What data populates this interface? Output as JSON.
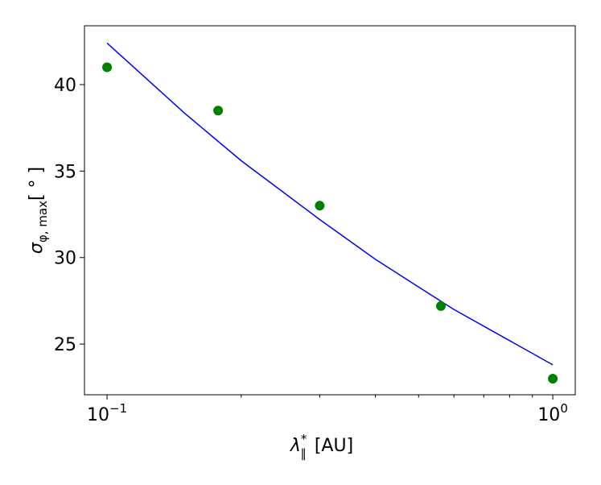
{
  "chart_data": {
    "type": "scatter-line",
    "xlog": true,
    "xlabel": {
      "symbol": "λ",
      "sup": "*",
      "sub": "∥",
      "unit": "[AU]"
    },
    "ylabel": {
      "symbol": "σ",
      "sub": "φ, max",
      "unit": "[ ° ]"
    },
    "xlim": [
      0.089,
      1.123
    ],
    "ylim": [
      22.07,
      43.4
    ],
    "xticks": [
      {
        "value": 0.1,
        "label": "10",
        "exponent": "−1"
      },
      {
        "value": 1,
        "label": "10",
        "exponent": "0"
      }
    ],
    "xminorticks": [
      0.2,
      0.3,
      0.4,
      0.5,
      0.6,
      0.7,
      0.8,
      0.9
    ],
    "yticks": [
      25,
      30,
      35,
      40
    ],
    "points": {
      "color": "#008000",
      "x": [
        0.1,
        0.1775,
        0.3,
        0.561,
        1.0
      ],
      "values": [
        41.0,
        38.5,
        33.0,
        27.2,
        23.0
      ]
    },
    "line": {
      "color": "#0000ff",
      "x": [
        0.1,
        0.15,
        0.2,
        0.3,
        0.4,
        0.5,
        0.6,
        0.8,
        1.0
      ],
      "values": [
        42.4,
        38.3,
        35.6,
        32.2,
        29.9,
        28.3,
        27.0,
        25.2,
        23.8
      ]
    }
  }
}
